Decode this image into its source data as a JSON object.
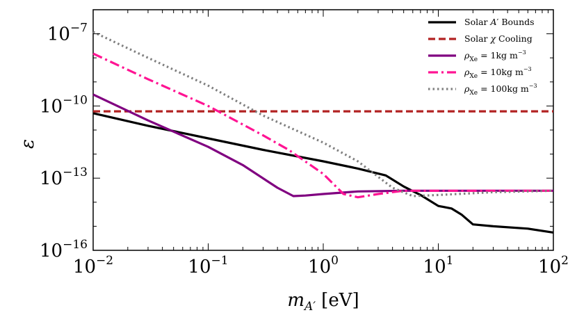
{
  "chart_data": {
    "type": "line",
    "title": "",
    "xlabel": {
      "base": "m",
      "sub": "A′",
      "unit": "[eV]"
    },
    "ylabel": "ε",
    "xscale": "log",
    "yscale": "log",
    "xlim": [
      0.01,
      100
    ],
    "ylim": [
      1e-16,
      1e-06
    ],
    "x_ticks": [
      {
        "value": 0.01,
        "base": "10",
        "exp": "−2"
      },
      {
        "value": 0.1,
        "base": "10",
        "exp": "−1"
      },
      {
        "value": 1,
        "base": "10",
        "exp": "0"
      },
      {
        "value": 10,
        "base": "10",
        "exp": "1"
      },
      {
        "value": 100,
        "base": "10",
        "exp": "2"
      }
    ],
    "y_ticks": [
      {
        "value": 1e-16,
        "base": "10",
        "exp": "−16"
      },
      {
        "value": 1e-13,
        "base": "10",
        "exp": "−13"
      },
      {
        "value": 1e-10,
        "base": "10",
        "exp": "−10"
      },
      {
        "value": 1e-07,
        "base": "10",
        "exp": "−7"
      }
    ],
    "legend_position": "top-right",
    "series": [
      {
        "name": "Solar A′ Bounds",
        "legend": {
          "pre": "Solar ",
          "italic": "A",
          "post": "′ Bounds"
        },
        "color": "#000000",
        "style": "solid",
        "x": [
          0.01,
          0.03,
          0.1,
          0.3,
          1,
          2,
          3.5,
          5,
          7,
          10,
          13,
          16,
          20,
          30,
          60,
          100
        ],
        "y": [
          5e-11,
          1.5e-11,
          4.5e-12,
          1.5e-12,
          5e-13,
          2.5e-13,
          1.3e-13,
          4.5e-14,
          2e-14,
          7e-15,
          5.5e-15,
          3e-15,
          1.2e-15,
          1e-15,
          8e-16,
          5.5e-16
        ]
      },
      {
        "name": "Solar χ Cooling",
        "legend": {
          "pre": "Solar ",
          "italic": "χ",
          "post": " Cooling"
        },
        "color": "#b22222",
        "style": "dashed",
        "x": [
          0.01,
          100
        ],
        "y": [
          6e-11,
          6e-11
        ]
      },
      {
        "name": "ρXe = 1kg m−3",
        "legend": {
          "symbol": "ρ",
          "sub": "Xe",
          "value": " = 1kg m",
          "sup": "−3"
        },
        "color": "#800080",
        "style": "solid",
        "x": [
          0.01,
          0.03,
          0.1,
          0.2,
          0.4,
          0.55,
          0.7,
          1,
          2,
          5,
          100
        ],
        "y": [
          3e-10,
          2.5e-11,
          2e-12,
          3.5e-13,
          4e-14,
          1.8e-14,
          1.9e-14,
          2.2e-14,
          2.8e-14,
          3e-14,
          3e-14
        ]
      },
      {
        "name": "ρXe = 10kg m−3",
        "legend": {
          "symbol": "ρ",
          "sub": "Xe",
          "value": " = 10kg m",
          "sup": "−3"
        },
        "color": "#ff1493",
        "style": "dashdot",
        "x": [
          0.01,
          0.03,
          0.1,
          0.3,
          0.5,
          1,
          1.5,
          2,
          3,
          5,
          100
        ],
        "y": [
          1.5e-08,
          1.3e-09,
          1e-10,
          6e-12,
          1.5e-12,
          1.5e-13,
          2.2e-14,
          1.6e-14,
          2.2e-14,
          3e-14,
          3e-14
        ]
      },
      {
        "name": "ρXe = 100kg m−3",
        "legend": {
          "symbol": "ρ",
          "sub": "Xe",
          "value": " = 100kg m",
          "sup": "−3"
        },
        "color": "#808080",
        "style": "dotted",
        "x": [
          0.01,
          0.03,
          0.1,
          0.3,
          1,
          2,
          4,
          6,
          10,
          30,
          100
        ],
        "y": [
          1.2e-07,
          1e-08,
          7e-10,
          4e-11,
          3e-12,
          5e-13,
          4e-14,
          1.8e-14,
          2e-14,
          2.6e-14,
          3e-14
        ]
      }
    ]
  }
}
